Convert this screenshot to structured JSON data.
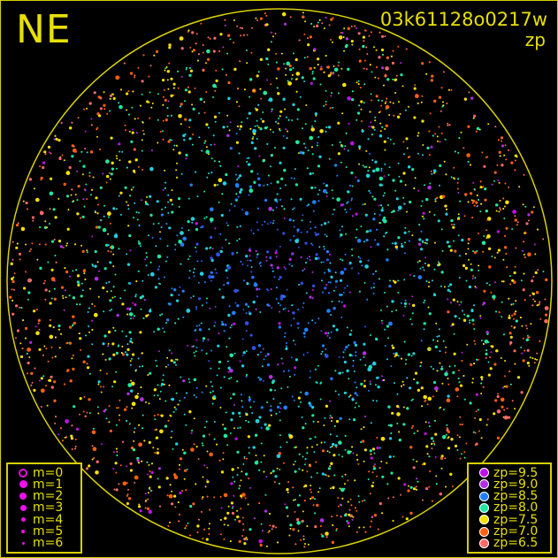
{
  "header": {
    "direction": "NE",
    "filename": "03k61128o0217w",
    "metric": "zp"
  },
  "colors": {
    "frame": "#d8d000",
    "text": "#e8e000"
  },
  "magnitude_legend": [
    {
      "label": "m=0",
      "size": 10,
      "hollow": true
    },
    {
      "label": "m=1",
      "size": 9
    },
    {
      "label": "m=2",
      "size": 8
    },
    {
      "label": "m=3",
      "size": 7
    },
    {
      "label": "m=4",
      "size": 5
    },
    {
      "label": "m=5",
      "size": 4
    },
    {
      "label": "m=6",
      "size": 3
    }
  ],
  "zp_legend": [
    {
      "label": "zp=9.5",
      "color": "#c010e8"
    },
    {
      "label": "zp=9.0",
      "color": "#b030e0"
    },
    {
      "label": "zp=8.5",
      "color": "#2080ff"
    },
    {
      "label": "zp=8.0",
      "color": "#20e8a0"
    },
    {
      "label": "zp=7.5",
      "color": "#f8e000"
    },
    {
      "label": "zp=7.0",
      "color": "#ff6010"
    },
    {
      "label": "zp=6.5",
      "color": "#ff6868"
    }
  ],
  "chart_data": {
    "type": "scatter",
    "projection": "all-sky fisheye",
    "color_by": "zp",
    "size_by": "magnitude",
    "zp_range": [
      6.5,
      9.5
    ],
    "magnitude_range": [
      0,
      6
    ]
  }
}
